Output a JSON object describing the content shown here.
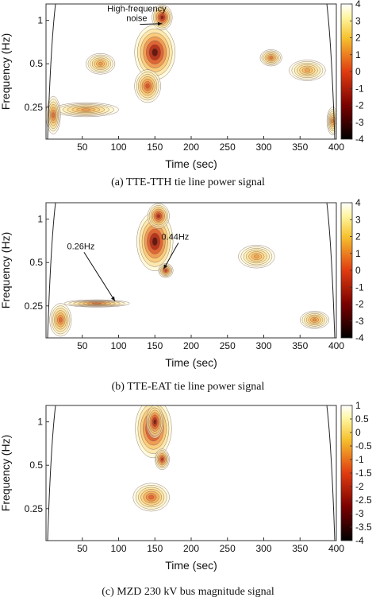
{
  "chart_data": [
    {
      "type": "heatmap",
      "caption": "(a) TTE-TTH tie line power signal",
      "xlabel": "Time (sec)",
      "ylabel": "Frequency (Hz)",
      "xlim": [
        0,
        400
      ],
      "ylim": [
        0.15,
        1.3
      ],
      "y_scale": "log",
      "xticks": [
        50,
        100,
        150,
        200,
        250,
        300,
        350,
        400
      ],
      "yticks": [
        0.25,
        0.5,
        1
      ],
      "ytick_labels": [
        "0.25",
        "0.5",
        "1"
      ],
      "colorbar": {
        "ticks": [
          4,
          3,
          2,
          1,
          0,
          -1,
          -2,
          -3,
          -4
        ],
        "range": [
          -4,
          4
        ]
      },
      "annotations": [
        {
          "lines": [
            "High-frequency",
            "noise"
          ],
          "at": [
            125,
            1.15
          ],
          "target": [
            160,
            0.95
          ]
        }
      ],
      "blobs": [
        {
          "x": 150,
          "y": 0.6,
          "sx": 28,
          "sy": 0.55,
          "v": 4
        },
        {
          "x": 160,
          "y": 1.05,
          "sx": 14,
          "sy": 0.22,
          "v": 3.5
        },
        {
          "x": 140,
          "y": 0.35,
          "sx": 18,
          "sy": 0.3,
          "v": 2
        },
        {
          "x": 55,
          "y": 0.24,
          "sx": 45,
          "sy": 0.12,
          "v": 0.5
        },
        {
          "x": 10,
          "y": 0.22,
          "sx": 10,
          "sy": 0.35,
          "v": 1.5
        },
        {
          "x": 75,
          "y": 0.5,
          "sx": 20,
          "sy": 0.18,
          "v": 0.6
        },
        {
          "x": 310,
          "y": 0.55,
          "sx": 15,
          "sy": 0.14,
          "v": 1.2
        },
        {
          "x": 360,
          "y": 0.45,
          "sx": 25,
          "sy": 0.18,
          "v": 0.3
        },
        {
          "x": 395,
          "y": 0.2,
          "sx": 8,
          "sy": 0.25,
          "v": 1.0
        }
      ]
    },
    {
      "type": "heatmap",
      "caption": "(b) TTE-EAT tie line power signal",
      "xlabel": "Time (sec)",
      "ylabel": "Frequency (Hz)",
      "xlim": [
        0,
        400
      ],
      "ylim": [
        0.15,
        1.3
      ],
      "y_scale": "log",
      "xticks": [
        50,
        100,
        150,
        200,
        250,
        300,
        350,
        400
      ],
      "yticks": [
        0.25,
        0.5,
        1
      ],
      "ytick_labels": [
        "0.25",
        "0.5",
        "1"
      ],
      "colorbar": {
        "ticks": [
          4,
          3,
          2,
          1,
          0,
          -1,
          -2,
          -3,
          -4
        ],
        "range": [
          -4,
          4
        ]
      },
      "annotations": [
        {
          "lines": [
            "0.26Hz"
          ],
          "at": [
            48,
            0.62
          ],
          "target": [
            95,
            0.27
          ]
        },
        {
          "lines": [
            "0.44Hz"
          ],
          "at": [
            178,
            0.72
          ],
          "target": [
            162,
            0.45
          ]
        }
      ],
      "blobs": [
        {
          "x": 150,
          "y": 0.7,
          "sx": 25,
          "sy": 0.6,
          "v": 4
        },
        {
          "x": 155,
          "y": 1.05,
          "sx": 15,
          "sy": 0.22,
          "v": 3
        },
        {
          "x": 165,
          "y": 0.44,
          "sx": 10,
          "sy": 0.12,
          "v": 2.5
        },
        {
          "x": 70,
          "y": 0.26,
          "sx": 45,
          "sy": 0.06,
          "v": 1.2
        },
        {
          "x": 20,
          "y": 0.2,
          "sx": 15,
          "sy": 0.3,
          "v": 1.5
        },
        {
          "x": 290,
          "y": 0.55,
          "sx": 25,
          "sy": 0.2,
          "v": 0.4
        },
        {
          "x": 370,
          "y": 0.2,
          "sx": 20,
          "sy": 0.15,
          "v": 0.8
        }
      ]
    },
    {
      "type": "heatmap",
      "caption": "(c) MZD 230 kV bus magnitude signal",
      "xlabel": "Time (sec)",
      "ylabel": "Frequency (Hz)",
      "xlim": [
        0,
        400
      ],
      "ylim": [
        0.15,
        1.3
      ],
      "y_scale": "log",
      "xticks": [
        50,
        100,
        150,
        200,
        250,
        300,
        350,
        400
      ],
      "yticks": [
        0.25,
        0.5,
        1
      ],
      "ytick_labels": [
        "0.25",
        "0.5",
        "1"
      ],
      "colorbar": {
        "ticks": [
          1,
          0.5,
          0,
          -0.5,
          -1,
          -1.5,
          -2,
          -2.5,
          -3,
          -3.5,
          -4
        ],
        "range": [
          -4,
          1
        ]
      },
      "annotations": [],
      "blobs": [
        {
          "x": 148,
          "y": 0.9,
          "sx": 25,
          "sy": 0.6,
          "v": 1.0
        },
        {
          "x": 150,
          "y": 1.0,
          "sx": 12,
          "sy": 0.3,
          "v": 0.8
        },
        {
          "x": 145,
          "y": 0.3,
          "sx": 25,
          "sy": 0.25,
          "v": -0.5
        },
        {
          "x": 160,
          "y": 0.55,
          "sx": 10,
          "sy": 0.18,
          "v": 0.2
        }
      ]
    }
  ]
}
